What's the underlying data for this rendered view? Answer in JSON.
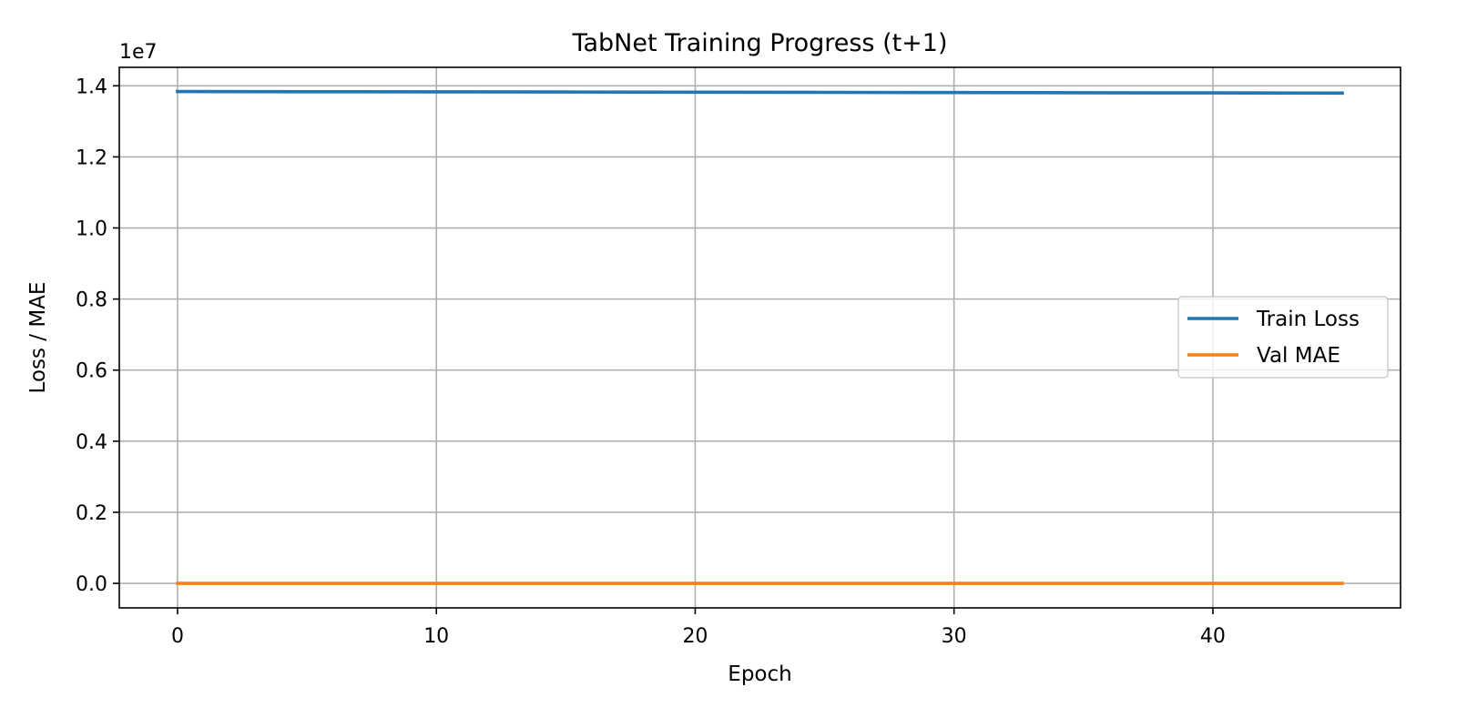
{
  "chart_data": {
    "type": "line",
    "title": "TabNet Training Progress (t+1)",
    "xlabel": "Epoch",
    "ylabel": "Loss / MAE",
    "offset_label": "1e7",
    "x": [
      0,
      45
    ],
    "xlim": [
      -2.25,
      47.25
    ],
    "ylim": [
      -0.069,
      1.452
    ],
    "xticks": [
      0,
      10,
      20,
      30,
      40
    ],
    "xtick_labels": [
      "0",
      "10",
      "20",
      "30",
      "40"
    ],
    "yticks": [
      0.0,
      0.2,
      0.4,
      0.6,
      0.8,
      1.0,
      1.2,
      1.4
    ],
    "ytick_labels": [
      "0.0",
      "0.2",
      "0.4",
      "0.6",
      "0.8",
      "1.0",
      "1.2",
      "1.4"
    ],
    "grid": true,
    "legend_position": "center-right",
    "series": [
      {
        "name": "Train Loss",
        "color": "#1f77b4",
        "x": [
          0,
          5,
          10,
          15,
          20,
          25,
          30,
          35,
          40,
          45
        ],
        "y": [
          1.384,
          1.3835,
          1.383,
          1.3825,
          1.382,
          1.3815,
          1.381,
          1.3805,
          1.38,
          1.3795
        ]
      },
      {
        "name": "Val MAE",
        "color": "#ff7f0e",
        "x": [
          0,
          5,
          10,
          15,
          20,
          25,
          30,
          35,
          40,
          45
        ],
        "y": [
          0.0,
          0.0,
          0.0,
          0.0,
          0.0,
          0.0,
          0.0,
          0.0,
          0.0,
          0.0
        ]
      }
    ]
  }
}
